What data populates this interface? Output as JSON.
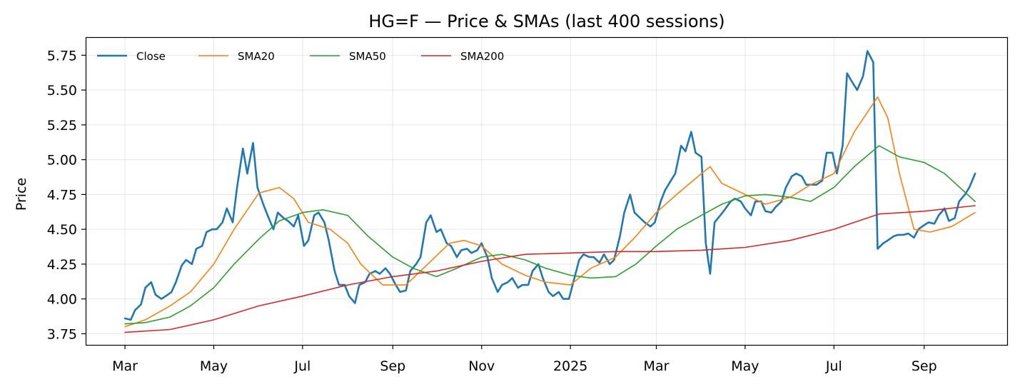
{
  "chart_data": {
    "type": "line",
    "title": "HG=F — Price & SMAs (last 400 sessions)",
    "xlabel": "",
    "ylabel": "Price",
    "x_ticks": [
      "Mar",
      "May",
      "Jul",
      "Sep",
      "Nov",
      "2025",
      "Mar",
      "May",
      "Jul",
      "Sep"
    ],
    "x_tick_dates": [
      "2024-03-01",
      "2024-05-01",
      "2024-07-01",
      "2024-09-01",
      "2024-11-01",
      "2025-01-01",
      "2025-03-01",
      "2025-05-01",
      "2025-07-01",
      "2025-09-01"
    ],
    "xlim": [
      "2024-02-03",
      "2025-10-28"
    ],
    "y_ticks": [
      "3.75",
      "4.00",
      "4.25",
      "4.50",
      "4.75",
      "5.00",
      "5.25",
      "5.50",
      "5.75"
    ],
    "ylim": [
      3.67,
      5.88
    ],
    "grid": true,
    "legend_position": "top-left",
    "series": [
      {
        "name": "Close",
        "color": "#1f77b4",
        "points": [
          [
            "2024-03-01",
            3.86
          ],
          [
            "2024-03-05",
            3.85
          ],
          [
            "2024-03-08",
            3.92
          ],
          [
            "2024-03-12",
            3.96
          ],
          [
            "2024-03-15",
            4.08
          ],
          [
            "2024-03-19",
            4.12
          ],
          [
            "2024-03-22",
            4.03
          ],
          [
            "2024-03-26",
            4.0
          ],
          [
            "2024-03-29",
            4.02
          ],
          [
            "2024-04-02",
            4.05
          ],
          [
            "2024-04-05",
            4.12
          ],
          [
            "2024-04-09",
            4.24
          ],
          [
            "2024-04-12",
            4.28
          ],
          [
            "2024-04-16",
            4.25
          ],
          [
            "2024-04-19",
            4.36
          ],
          [
            "2024-04-23",
            4.38
          ],
          [
            "2024-04-26",
            4.48
          ],
          [
            "2024-04-30",
            4.5
          ],
          [
            "2024-05-03",
            4.5
          ],
          [
            "2024-05-07",
            4.55
          ],
          [
            "2024-05-10",
            4.65
          ],
          [
            "2024-05-14",
            4.55
          ],
          [
            "2024-05-17",
            4.8
          ],
          [
            "2024-05-21",
            5.08
          ],
          [
            "2024-05-24",
            4.9
          ],
          [
            "2024-05-28",
            5.12
          ],
          [
            "2024-05-31",
            4.8
          ],
          [
            "2024-06-04",
            4.68
          ],
          [
            "2024-06-07",
            4.6
          ],
          [
            "2024-06-11",
            4.5
          ],
          [
            "2024-06-14",
            4.62
          ],
          [
            "2024-06-18",
            4.58
          ],
          [
            "2024-06-21",
            4.56
          ],
          [
            "2024-06-25",
            4.52
          ],
          [
            "2024-06-28",
            4.6
          ],
          [
            "2024-07-02",
            4.38
          ],
          [
            "2024-07-05",
            4.42
          ],
          [
            "2024-07-09",
            4.6
          ],
          [
            "2024-07-12",
            4.62
          ],
          [
            "2024-07-16",
            4.55
          ],
          [
            "2024-07-19",
            4.42
          ],
          [
            "2024-07-23",
            4.2
          ],
          [
            "2024-07-26",
            4.1
          ],
          [
            "2024-07-30",
            4.1
          ],
          [
            "2024-08-02",
            4.02
          ],
          [
            "2024-08-06",
            3.97
          ],
          [
            "2024-08-09",
            4.1
          ],
          [
            "2024-08-13",
            4.12
          ],
          [
            "2024-08-16",
            4.18
          ],
          [
            "2024-08-20",
            4.2
          ],
          [
            "2024-08-23",
            4.18
          ],
          [
            "2024-08-27",
            4.22
          ],
          [
            "2024-08-30",
            4.18
          ],
          [
            "2024-09-03",
            4.1
          ],
          [
            "2024-09-06",
            4.05
          ],
          [
            "2024-09-10",
            4.06
          ],
          [
            "2024-09-13",
            4.2
          ],
          [
            "2024-09-17",
            4.25
          ],
          [
            "2024-09-20",
            4.3
          ],
          [
            "2024-09-24",
            4.55
          ],
          [
            "2024-09-27",
            4.6
          ],
          [
            "2024-10-01",
            4.48
          ],
          [
            "2024-10-04",
            4.5
          ],
          [
            "2024-10-08",
            4.4
          ],
          [
            "2024-10-11",
            4.38
          ],
          [
            "2024-10-15",
            4.3
          ],
          [
            "2024-10-18",
            4.35
          ],
          [
            "2024-10-22",
            4.36
          ],
          [
            "2024-10-25",
            4.33
          ],
          [
            "2024-10-29",
            4.35
          ],
          [
            "2024-11-01",
            4.4
          ],
          [
            "2024-11-05",
            4.3
          ],
          [
            "2024-11-08",
            4.15
          ],
          [
            "2024-11-12",
            4.05
          ],
          [
            "2024-11-15",
            4.1
          ],
          [
            "2024-11-19",
            4.12
          ],
          [
            "2024-11-22",
            4.15
          ],
          [
            "2024-11-26",
            4.08
          ],
          [
            "2024-11-29",
            4.1
          ],
          [
            "2024-12-03",
            4.1
          ],
          [
            "2024-12-06",
            4.2
          ],
          [
            "2024-12-10",
            4.25
          ],
          [
            "2024-12-13",
            4.15
          ],
          [
            "2024-12-17",
            4.05
          ],
          [
            "2024-12-20",
            4.02
          ],
          [
            "2024-12-24",
            4.05
          ],
          [
            "2024-12-27",
            4.0
          ],
          [
            "2024-12-31",
            4.0
          ],
          [
            "2025-01-03",
            4.12
          ],
          [
            "2025-01-07",
            4.28
          ],
          [
            "2025-01-10",
            4.32
          ],
          [
            "2025-01-14",
            4.3
          ],
          [
            "2025-01-17",
            4.3
          ],
          [
            "2025-01-21",
            4.26
          ],
          [
            "2025-01-24",
            4.32
          ],
          [
            "2025-01-28",
            4.25
          ],
          [
            "2025-01-31",
            4.28
          ],
          [
            "2025-02-04",
            4.45
          ],
          [
            "2025-02-07",
            4.62
          ],
          [
            "2025-02-11",
            4.75
          ],
          [
            "2025-02-14",
            4.62
          ],
          [
            "2025-02-18",
            4.58
          ],
          [
            "2025-02-21",
            4.55
          ],
          [
            "2025-02-25",
            4.52
          ],
          [
            "2025-02-28",
            4.55
          ],
          [
            "2025-03-04",
            4.7
          ],
          [
            "2025-03-07",
            4.78
          ],
          [
            "2025-03-11",
            4.85
          ],
          [
            "2025-03-14",
            4.9
          ],
          [
            "2025-03-18",
            5.1
          ],
          [
            "2025-03-21",
            5.06
          ],
          [
            "2025-03-25",
            5.2
          ],
          [
            "2025-03-28",
            5.05
          ],
          [
            "2025-04-01",
            5.02
          ],
          [
            "2025-04-04",
            4.4
          ],
          [
            "2025-04-07",
            4.18
          ],
          [
            "2025-04-10",
            4.55
          ],
          [
            "2025-04-14",
            4.6
          ],
          [
            "2025-04-17",
            4.64
          ],
          [
            "2025-04-21",
            4.7
          ],
          [
            "2025-04-24",
            4.72
          ],
          [
            "2025-04-28",
            4.7
          ],
          [
            "2025-05-01",
            4.65
          ],
          [
            "2025-05-05",
            4.6
          ],
          [
            "2025-05-08",
            4.7
          ],
          [
            "2025-05-12",
            4.7
          ],
          [
            "2025-05-15",
            4.63
          ],
          [
            "2025-05-19",
            4.62
          ],
          [
            "2025-05-22",
            4.66
          ],
          [
            "2025-05-26",
            4.7
          ],
          [
            "2025-05-29",
            4.8
          ],
          [
            "2025-06-02",
            4.88
          ],
          [
            "2025-06-05",
            4.9
          ],
          [
            "2025-06-09",
            4.88
          ],
          [
            "2025-06-12",
            4.82
          ],
          [
            "2025-06-16",
            4.82
          ],
          [
            "2025-06-19",
            4.82
          ],
          [
            "2025-06-23",
            4.85
          ],
          [
            "2025-06-26",
            5.05
          ],
          [
            "2025-06-30",
            5.05
          ],
          [
            "2025-07-03",
            4.9
          ],
          [
            "2025-07-07",
            5.1
          ],
          [
            "2025-07-10",
            5.62
          ],
          [
            "2025-07-14",
            5.55
          ],
          [
            "2025-07-17",
            5.5
          ],
          [
            "2025-07-21",
            5.6
          ],
          [
            "2025-07-24",
            5.78
          ],
          [
            "2025-07-28",
            5.7
          ],
          [
            "2025-07-31",
            4.36
          ],
          [
            "2025-08-04",
            4.4
          ],
          [
            "2025-08-07",
            4.42
          ],
          [
            "2025-08-11",
            4.45
          ],
          [
            "2025-08-14",
            4.46
          ],
          [
            "2025-08-18",
            4.46
          ],
          [
            "2025-08-21",
            4.47
          ],
          [
            "2025-08-25",
            4.44
          ],
          [
            "2025-08-28",
            4.5
          ],
          [
            "2025-09-01",
            4.53
          ],
          [
            "2025-09-04",
            4.55
          ],
          [
            "2025-09-08",
            4.54
          ],
          [
            "2025-09-11",
            4.6
          ],
          [
            "2025-09-15",
            4.65
          ],
          [
            "2025-09-18",
            4.56
          ],
          [
            "2025-09-22",
            4.58
          ],
          [
            "2025-09-25",
            4.7
          ],
          [
            "2025-09-29",
            4.75
          ],
          [
            "2025-10-02",
            4.8
          ],
          [
            "2025-10-06",
            4.9
          ]
        ]
      },
      {
        "name": "SMA20",
        "color": "#ff7f0e",
        "points": [
          [
            "2024-03-01",
            3.8
          ],
          [
            "2024-03-15",
            3.85
          ],
          [
            "2024-04-01",
            3.95
          ],
          [
            "2024-04-15",
            4.05
          ],
          [
            "2024-05-01",
            4.25
          ],
          [
            "2024-05-15",
            4.5
          ],
          [
            "2024-06-01",
            4.76
          ],
          [
            "2024-06-15",
            4.8
          ],
          [
            "2024-06-25",
            4.72
          ],
          [
            "2024-07-05",
            4.55
          ],
          [
            "2024-07-20",
            4.5
          ],
          [
            "2024-08-01",
            4.4
          ],
          [
            "2024-08-10",
            4.25
          ],
          [
            "2024-08-25",
            4.1
          ],
          [
            "2024-09-10",
            4.1
          ],
          [
            "2024-09-25",
            4.25
          ],
          [
            "2024-10-10",
            4.4
          ],
          [
            "2024-10-20",
            4.42
          ],
          [
            "2024-11-01",
            4.38
          ],
          [
            "2024-11-15",
            4.25
          ],
          [
            "2024-12-01",
            4.17
          ],
          [
            "2024-12-15",
            4.12
          ],
          [
            "2025-01-01",
            4.1
          ],
          [
            "2025-01-15",
            4.22
          ],
          [
            "2025-02-01",
            4.3
          ],
          [
            "2025-02-15",
            4.45
          ],
          [
            "2025-03-01",
            4.62
          ],
          [
            "2025-03-15",
            4.75
          ],
          [
            "2025-04-01",
            4.9
          ],
          [
            "2025-04-07",
            4.95
          ],
          [
            "2025-04-15",
            4.83
          ],
          [
            "2025-05-01",
            4.75
          ],
          [
            "2025-05-15",
            4.68
          ],
          [
            "2025-06-01",
            4.73
          ],
          [
            "2025-06-15",
            4.82
          ],
          [
            "2025-07-01",
            4.9
          ],
          [
            "2025-07-15",
            5.2
          ],
          [
            "2025-07-31",
            5.45
          ],
          [
            "2025-08-07",
            5.3
          ],
          [
            "2025-08-15",
            4.9
          ],
          [
            "2025-08-25",
            4.5
          ],
          [
            "2025-09-05",
            4.48
          ],
          [
            "2025-09-20",
            4.52
          ],
          [
            "2025-10-06",
            4.62
          ]
        ]
      },
      {
        "name": "SMA50",
        "color": "#2ca02c",
        "points": [
          [
            "2024-03-01",
            3.82
          ],
          [
            "2024-03-15",
            3.83
          ],
          [
            "2024-04-01",
            3.87
          ],
          [
            "2024-04-15",
            3.95
          ],
          [
            "2024-05-01",
            4.08
          ],
          [
            "2024-05-15",
            4.25
          ],
          [
            "2024-06-01",
            4.43
          ],
          [
            "2024-06-15",
            4.56
          ],
          [
            "2024-07-01",
            4.62
          ],
          [
            "2024-07-15",
            4.64
          ],
          [
            "2024-08-01",
            4.6
          ],
          [
            "2024-08-15",
            4.45
          ],
          [
            "2024-09-01",
            4.3
          ],
          [
            "2024-09-15",
            4.22
          ],
          [
            "2024-10-01",
            4.16
          ],
          [
            "2024-10-15",
            4.22
          ],
          [
            "2024-11-01",
            4.3
          ],
          [
            "2024-11-15",
            4.32
          ],
          [
            "2024-12-01",
            4.28
          ],
          [
            "2024-12-15",
            4.22
          ],
          [
            "2025-01-01",
            4.17
          ],
          [
            "2025-01-15",
            4.15
          ],
          [
            "2025-02-01",
            4.16
          ],
          [
            "2025-02-15",
            4.25
          ],
          [
            "2025-03-01",
            4.38
          ],
          [
            "2025-03-15",
            4.5
          ],
          [
            "2025-04-01",
            4.6
          ],
          [
            "2025-04-15",
            4.68
          ],
          [
            "2025-05-01",
            4.74
          ],
          [
            "2025-05-15",
            4.75
          ],
          [
            "2025-06-01",
            4.73
          ],
          [
            "2025-06-15",
            4.7
          ],
          [
            "2025-07-01",
            4.8
          ],
          [
            "2025-07-15",
            4.95
          ],
          [
            "2025-08-01",
            5.1
          ],
          [
            "2025-08-15",
            5.02
          ],
          [
            "2025-09-01",
            4.98
          ],
          [
            "2025-09-15",
            4.9
          ],
          [
            "2025-10-06",
            4.7
          ]
        ]
      },
      {
        "name": "SMA200",
        "color": "#d62728",
        "points": [
          [
            "2024-03-01",
            3.76
          ],
          [
            "2024-04-01",
            3.78
          ],
          [
            "2024-05-01",
            3.85
          ],
          [
            "2024-06-01",
            3.95
          ],
          [
            "2024-07-01",
            4.02
          ],
          [
            "2024-08-01",
            4.1
          ],
          [
            "2024-09-01",
            4.16
          ],
          [
            "2024-10-01",
            4.2
          ],
          [
            "2024-11-01",
            4.27
          ],
          [
            "2024-12-01",
            4.32
          ],
          [
            "2025-01-01",
            4.33
          ],
          [
            "2025-02-01",
            4.34
          ],
          [
            "2025-03-01",
            4.34
          ],
          [
            "2025-04-01",
            4.35
          ],
          [
            "2025-05-01",
            4.37
          ],
          [
            "2025-06-01",
            4.42
          ],
          [
            "2025-07-01",
            4.5
          ],
          [
            "2025-08-01",
            4.61
          ],
          [
            "2025-09-01",
            4.63
          ],
          [
            "2025-10-06",
            4.67
          ]
        ]
      }
    ]
  }
}
